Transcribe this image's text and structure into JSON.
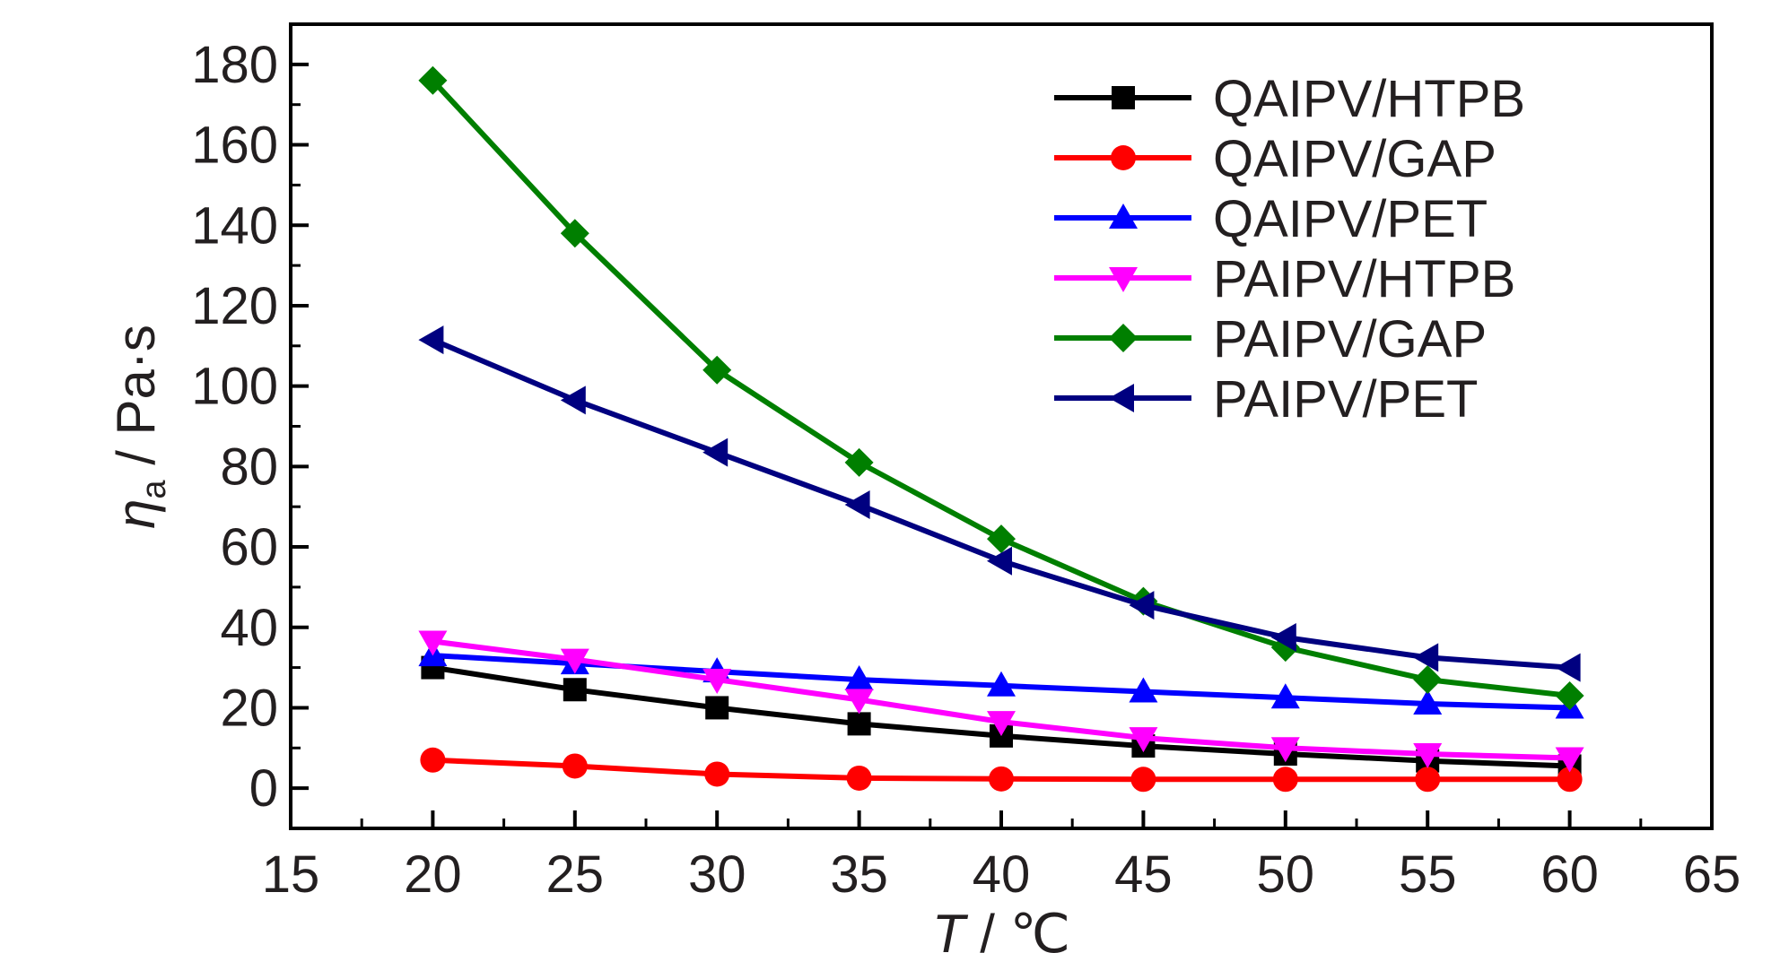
{
  "chart_data": {
    "type": "line",
    "xlabel": "T / ℃",
    "xlabel_parts": {
      "symbol": "T",
      "unit": " / ℃"
    },
    "ylabel": "ηa / Pa·s",
    "ylabel_parts": {
      "symbol": "η",
      "subscript": "a",
      "unit": " / Pa·s"
    },
    "xlim": [
      15,
      65
    ],
    "ylim": [
      -10,
      190
    ],
    "xticks": [
      15,
      20,
      25,
      30,
      35,
      40,
      45,
      50,
      55,
      60,
      65
    ],
    "yticks": [
      0,
      20,
      40,
      60,
      80,
      100,
      120,
      140,
      160,
      180
    ],
    "x": [
      20,
      25,
      30,
      35,
      40,
      45,
      50,
      55,
      60
    ],
    "grid": false,
    "legend_position": "top-right",
    "series": [
      {
        "name": "QAIPV/HTPB",
        "color": "#000000",
        "marker": "square",
        "values": [
          30,
          24.5,
          20,
          16,
          13,
          10.5,
          8.5,
          6.8,
          5.5
        ]
      },
      {
        "name": "QAIPV/GAP",
        "color": "#ff0000",
        "marker": "circle",
        "values": [
          7,
          5.5,
          3.5,
          2.5,
          2.3,
          2.2,
          2.2,
          2.2,
          2.2
        ]
      },
      {
        "name": "QAIPV/PET",
        "color": "#0000ff",
        "marker": "triangle-up",
        "values": [
          33,
          31,
          29,
          27,
          25.5,
          24,
          22.5,
          21,
          20
        ]
      },
      {
        "name": "PAIPV/HTPB",
        "color": "#ff00ff",
        "marker": "triangle-down",
        "values": [
          36.5,
          32,
          27,
          22,
          16.5,
          12.5,
          10,
          8.5,
          7.5
        ]
      },
      {
        "name": "PAIPV/GAP",
        "color": "#007f00",
        "marker": "diamond",
        "values": [
          176,
          138,
          104,
          81,
          62,
          46.5,
          35,
          27,
          23
        ]
      },
      {
        "name": "PAIPV/PET",
        "color": "#000080",
        "marker": "triangle-left",
        "values": [
          111.5,
          96.5,
          83.5,
          70.5,
          56.5,
          45.5,
          37.5,
          32.5,
          30
        ]
      }
    ]
  }
}
